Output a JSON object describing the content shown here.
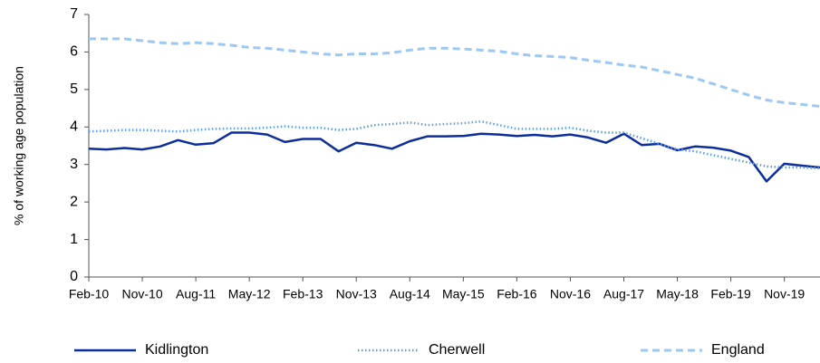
{
  "chart_data": {
    "type": "line",
    "y_label": "% of working age population",
    "categories": [
      "Feb-10",
      null,
      null,
      "Nov-10",
      null,
      null,
      "Aug-11",
      null,
      null,
      "May-12",
      null,
      null,
      "Feb-13",
      null,
      null,
      "Nov-13",
      null,
      null,
      "Aug-14",
      null,
      null,
      "May-15",
      null,
      null,
      "Feb-16",
      null,
      null,
      "Nov-16",
      null,
      null,
      "Aug-17",
      null,
      null,
      "May-18",
      null,
      null,
      "Feb-19",
      null,
      null,
      "Nov-19",
      null,
      null
    ],
    "series": [
      {
        "name": "Kidlington",
        "color": "#0c2d9c",
        "style": "solid",
        "values": [
          3.42,
          3.4,
          3.44,
          3.4,
          3.48,
          3.65,
          3.53,
          3.57,
          3.85,
          3.85,
          3.8,
          3.6,
          3.68,
          3.68,
          3.35,
          3.58,
          3.52,
          3.42,
          3.62,
          3.75,
          3.75,
          3.76,
          3.82,
          3.8,
          3.76,
          3.79,
          3.75,
          3.8,
          3.72,
          3.58,
          3.82,
          3.52,
          3.55,
          3.38,
          3.48,
          3.45,
          3.37,
          3.2,
          2.55,
          3.02,
          2.97,
          2.92
        ]
      },
      {
        "name": "Cherwell",
        "color": "#5b9cec",
        "style": "dotted",
        "values": [
          3.88,
          3.9,
          3.92,
          3.92,
          3.9,
          3.88,
          3.92,
          3.95,
          3.96,
          3.96,
          3.98,
          4.02,
          3.98,
          3.98,
          3.92,
          3.95,
          4.05,
          4.08,
          4.12,
          4.05,
          4.08,
          4.1,
          4.15,
          4.05,
          3.95,
          3.95,
          3.95,
          3.98,
          3.9,
          3.85,
          3.85,
          3.7,
          3.55,
          3.4,
          3.35,
          3.25,
          3.15,
          3.05,
          2.95,
          2.92,
          2.92,
          2.9
        ]
      },
      {
        "name": "England",
        "color": "#9cc8f2",
        "style": "dashed",
        "values": [
          6.35,
          6.35,
          6.35,
          6.3,
          6.25,
          6.22,
          6.25,
          6.22,
          6.18,
          6.12,
          6.1,
          6.05,
          6.0,
          5.95,
          5.92,
          5.95,
          5.95,
          5.98,
          6.05,
          6.1,
          6.1,
          6.08,
          6.05,
          6.02,
          5.95,
          5.9,
          5.88,
          5.85,
          5.78,
          5.72,
          5.65,
          5.6,
          5.5,
          5.4,
          5.3,
          5.15,
          5.0,
          4.85,
          4.72,
          4.65,
          4.6,
          4.55
        ]
      }
    ],
    "ylim": [
      0,
      7
    ],
    "yticks": [
      0,
      1,
      2,
      3,
      4,
      5,
      6,
      7
    ],
    "grid": false,
    "legend": "bottom"
  }
}
